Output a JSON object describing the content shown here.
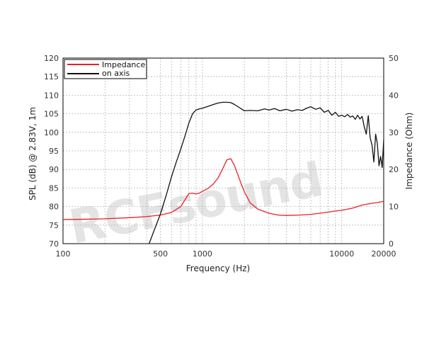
{
  "watermark": "RCFsound",
  "chart_data": {
    "type": "line",
    "xlabel": "Frequency (Hz)",
    "ylabel_left": "SPL (dB) @ 2.83V, 1m",
    "ylabel_right": "Impedance (Ohm)",
    "x_scale": "log",
    "xlim": [
      100,
      20000
    ],
    "ylim_left": [
      70,
      120
    ],
    "ylim_right": [
      0,
      50
    ],
    "grid": true,
    "legend_position": "top-left",
    "x_ticks": [
      100,
      500,
      1000,
      10000,
      20000
    ],
    "x_tick_labels": [
      "100",
      "500",
      "1000",
      "10000",
      "20000"
    ],
    "y_ticks_left": [
      70,
      75,
      80,
      85,
      90,
      95,
      100,
      105,
      110,
      115,
      120
    ],
    "y_ticks_right": [
      0,
      10,
      20,
      30,
      40,
      50
    ],
    "series": [
      {
        "name": "Impedance",
        "axis": "right",
        "color": "#e8202a",
        "x": [
          100,
          150,
          200,
          300,
          400,
          500,
          600,
          700,
          800,
          850,
          900,
          950,
          1000,
          1100,
          1200,
          1300,
          1400,
          1500,
          1600,
          1700,
          1800,
          1900,
          2000,
          2200,
          2500,
          3000,
          3500,
          4000,
          5000,
          6000,
          7000,
          8000,
          9000,
          10000,
          12000,
          14000,
          16000,
          18000,
          20000
        ],
        "values": [
          6.5,
          6.6,
          6.7,
          7.0,
          7.3,
          7.7,
          8.4,
          10.0,
          13.5,
          13.6,
          13.4,
          13.6,
          14.1,
          14.9,
          16.1,
          17.8,
          20.2,
          22.6,
          22.9,
          21.0,
          18.5,
          16.1,
          14.0,
          11.0,
          9.3,
          8.2,
          7.7,
          7.6,
          7.7,
          7.9,
          8.2,
          8.5,
          8.8,
          9.0,
          9.6,
          10.4,
          10.8,
          11.1,
          11.4
        ]
      },
      {
        "name": "on axis",
        "axis": "left",
        "color": "#111111",
        "x": [
          100,
          200,
          400,
          450,
          500,
          550,
          600,
          650,
          700,
          750,
          800,
          850,
          900,
          950,
          1000,
          1100,
          1200,
          1300,
          1400,
          1500,
          1600,
          1700,
          1800,
          2000,
          2200,
          2500,
          2800,
          3000,
          3300,
          3600,
          4000,
          4400,
          4800,
          5200,
          5600,
          6000,
          6500,
          7000,
          7500,
          8000,
          8500,
          9000,
          9500,
          10000,
          10500,
          11000,
          11500,
          12000,
          12500,
          13000,
          13500,
          14000,
          14500,
          15000,
          15500,
          16000,
          16500,
          17000,
          17500,
          18000,
          18500,
          19000,
          19500,
          20000
        ],
        "values": [
          null,
          null,
          null,
          73.5,
          78.0,
          83.0,
          88.0,
          92.0,
          95.5,
          99.0,
          102.5,
          105.0,
          106.0,
          106.3,
          106.5,
          107.0,
          107.5,
          107.9,
          108.1,
          108.1,
          108.0,
          107.5,
          106.9,
          105.8,
          105.9,
          105.8,
          106.3,
          106.0,
          106.4,
          105.8,
          106.2,
          105.7,
          106.1,
          105.9,
          106.5,
          106.9,
          106.2,
          106.6,
          105.4,
          105.9,
          104.6,
          105.4,
          104.3,
          104.6,
          104.2,
          104.8,
          104.1,
          104.4,
          103.5,
          104.6,
          103.6,
          104.3,
          101.5,
          99.5,
          104.5,
          98.5,
          96.5,
          92.0,
          99.5,
          97.0,
          91.0,
          93.5,
          90.5,
          98.0
        ]
      }
    ]
  }
}
